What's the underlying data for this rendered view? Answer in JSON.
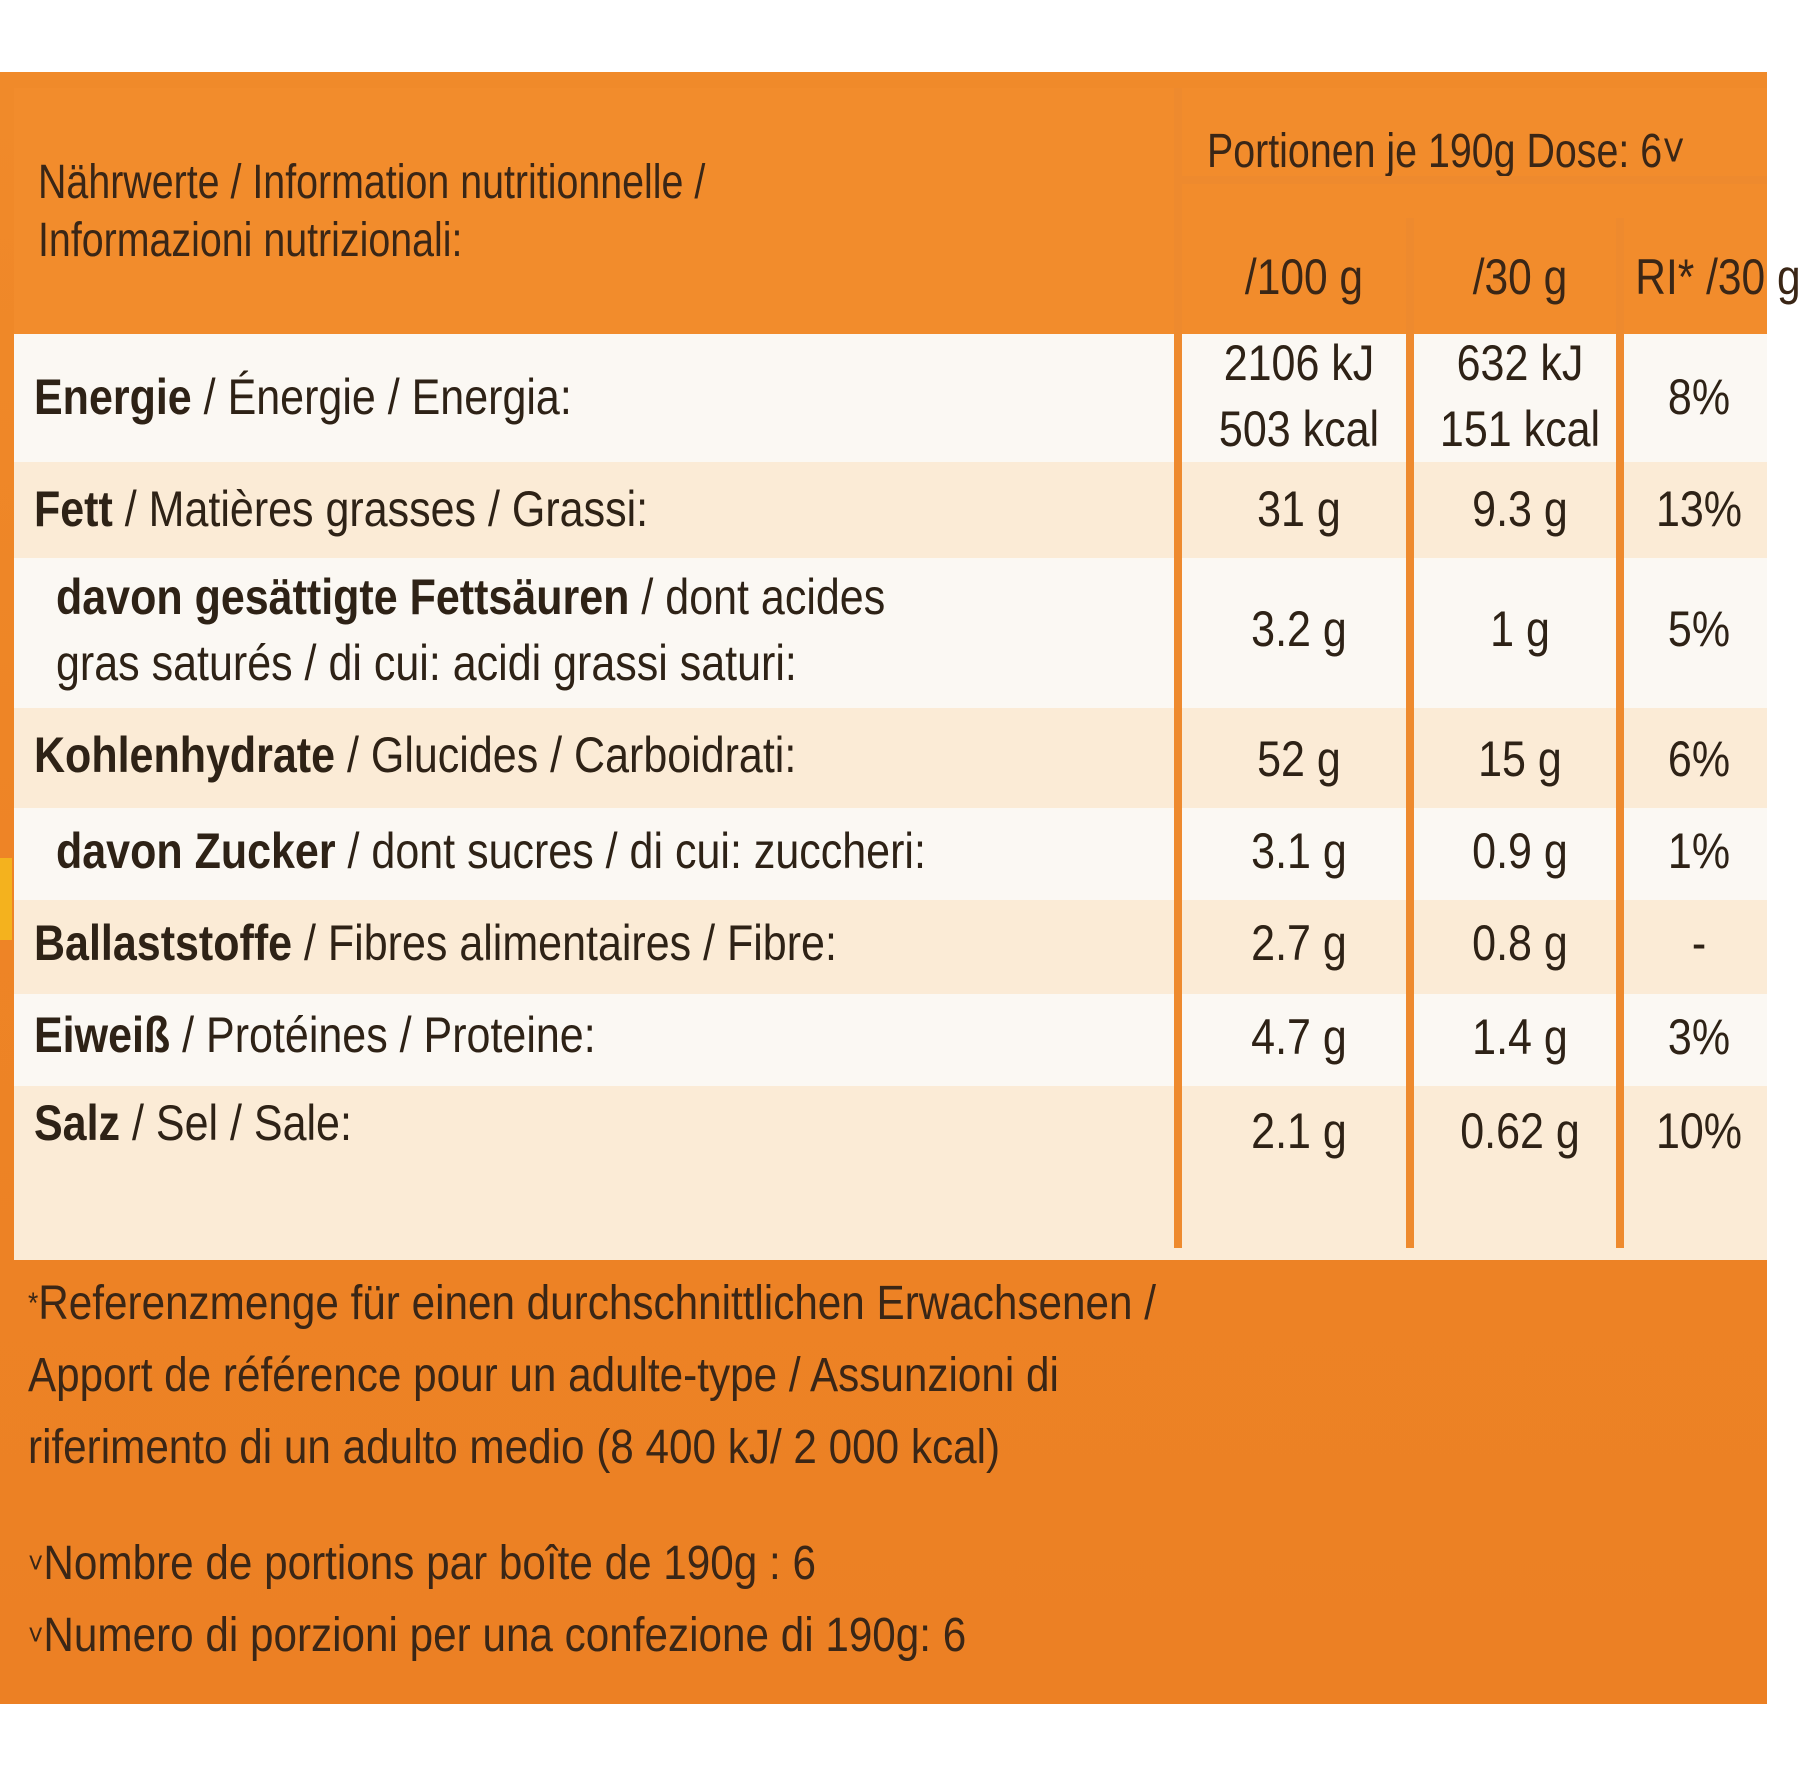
{
  "header": {
    "title_line1": "Nährwerte / Information nutritionnelle /",
    "title_line2": "Informazioni nutrizionali:",
    "portions": "Portionen je 190g Dose: 6˅",
    "col_100g": "/100 g",
    "col_30g": "/30 g",
    "col_ri": "RI* /30 g"
  },
  "rows": [
    {
      "bold": "Energie",
      "rest": " / Énergie / Energia:",
      "v100_1": "2106 kJ",
      "v100_2": "503 kcal",
      "v30_1": "632 kJ",
      "v30_2": "151 kcal",
      "ri": "8%"
    },
    {
      "bold": "Fett",
      "rest": " / Matières grasses / Grassi:",
      "v100": "31 g",
      "v30": "9.3 g",
      "ri": "13%"
    },
    {
      "bold": "davon gesättigte Fettsäuren",
      "rest": " / dont acides",
      "line2": "gras saturés / di cui: acidi grassi saturi:",
      "v100": "3.2 g",
      "v30": "1 g",
      "ri": "5%"
    },
    {
      "bold": "Kohlenhydrate",
      "rest": " / Glucides /  Carboidrati:",
      "v100": "52 g",
      "v30": "15 g",
      "ri": "6%"
    },
    {
      "bold": "davon Zucker",
      "rest": " / dont sucres / di cui: zuccheri:",
      "v100": "3.1 g",
      "v30": "0.9 g",
      "ri": "1%"
    },
    {
      "bold": "Ballaststoffe",
      "rest": " / Fibres alimentaires / Fibre:",
      "v100": "2.7 g",
      "v30": "0.8 g",
      "ri": "-"
    },
    {
      "bold": "Eiweiß",
      "rest": " / Protéines / Proteine:",
      "v100": "4.7 g",
      "v30": "1.4 g",
      "ri": "3%"
    },
    {
      "bold": "Salz",
      "rest": " / Sel / Sale:",
      "v100": "2.1 g",
      "v30": "0.62 g",
      "ri": "10%"
    }
  ],
  "footnotes": {
    "ref_symbol": "*",
    "ref_line1": "Referenzmenge für einen durchschnittlichen Erwachsenen /",
    "ref_line2": "Apport de référence pour un adulte-type / Assunzioni di",
    "ref_line3": "riferimento di un adulto medio (8 400 kJ/ 2 000 kcal)",
    "portion_symbol": "˅",
    "portion_fr": "Nombre de portions par boîte de 190g : 6",
    "portion_it": "Numero di porzioni per una confezione di 190g: 6"
  }
}
